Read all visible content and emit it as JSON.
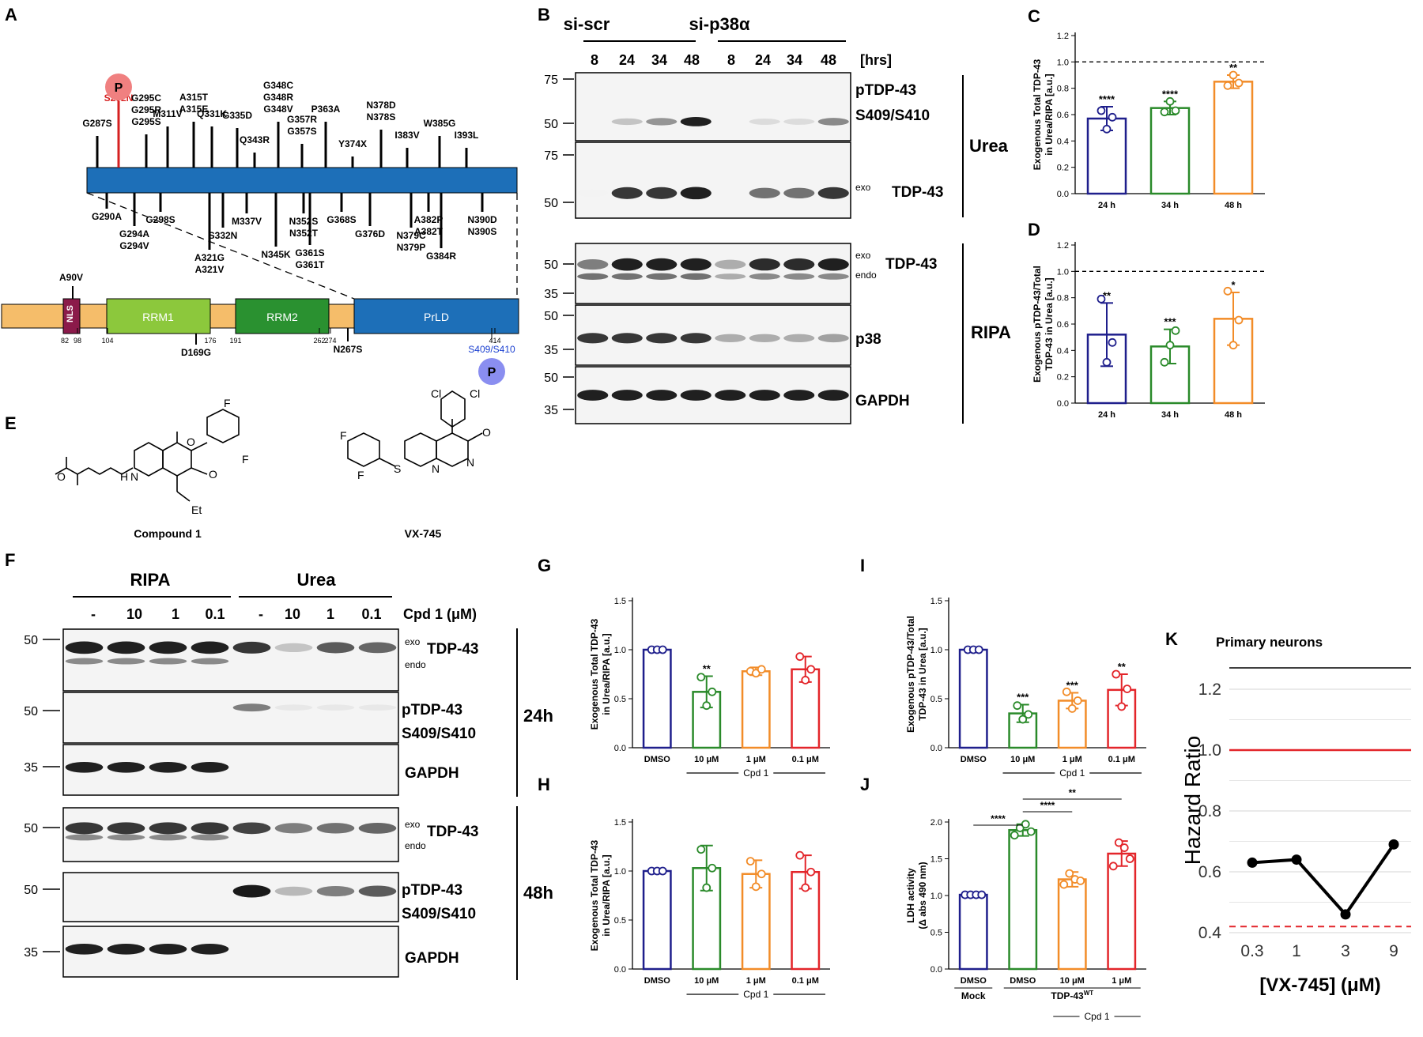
{
  "colors": {
    "navy": "#1f1f8c",
    "green": "#2a8a2a",
    "orange": "#f28c28",
    "red": "#e3252a",
    "blue_domain": "#1d6fb8",
    "rrm1": "#8cc83c",
    "rrm2": "#2a9130",
    "nls": "#8b1a4a",
    "linker": "#f5bd6a",
    "phospho_red": "#f08080",
    "phospho_blue": "#8a8ef0"
  },
  "panelA": {
    "letter": "A",
    "top_mutations": [
      "G287S",
      "S292N",
      "G295C\nG295R\nG295S",
      "M311V",
      "A315T\nA315E",
      "Q331K",
      "G335D",
      "Q343R",
      "G348C\nG348R\nG348V",
      "G357R\nG357S",
      "P363A",
      "Y374X",
      "N378D\nN378S",
      "I383V",
      "W385G",
      "I393L"
    ],
    "bottom_mutations": [
      "G290A",
      "G294A\nG294V",
      "G298S",
      "A321G\nA321V",
      "S332N",
      "M337V",
      "N345K",
      "N352S\nN352T",
      "G361S\nG361T",
      "G368S",
      "G376D",
      "N379C\nN379P",
      "A382P\nA382T",
      "G384R",
      "N390D\nN390S"
    ],
    "phospho_top": "S292N",
    "p_label": "P",
    "domains": {
      "nls": "NLS",
      "rrm1": "RRM1",
      "rrm2": "RRM2",
      "prld": "PrLD"
    },
    "positions": [
      "82",
      "98",
      "104",
      "176",
      "191",
      "262",
      "274",
      "414"
    ],
    "other_mutations": {
      "a90v": "A90V",
      "d169g": "D169G",
      "n267s": "N267S"
    },
    "phospho_site": "S409/S410"
  },
  "panelB": {
    "letter": "B",
    "group1": "si-scr",
    "group2": "si-p38α",
    "times": [
      "8",
      "24",
      "34",
      "48",
      "8",
      "24",
      "34",
      "48"
    ],
    "time_unit": "[hrs]",
    "mw_upper": [
      "75",
      "50",
      "75",
      "50"
    ],
    "mw_lower": [
      "50",
      "35",
      "50",
      "35",
      "50",
      "35"
    ],
    "labels": {
      "ptdp": "pTDP-43",
      "ptdp_site": "S409/S410",
      "exo": "exo",
      "endo": "endo",
      "tdp": "TDP-43",
      "p38": "p38",
      "gapdh": "GAPDH",
      "urea": "Urea",
      "ripa": "RIPA"
    }
  },
  "panelC": {
    "letter": "C",
    "ylabel1": "Exogenous Total TDP-43",
    "ylabel2": "in Urea/RIPA [a.u.]",
    "categories": [
      "24 h",
      "34 h",
      "48 h"
    ],
    "values": [
      0.57,
      0.65,
      0.85
    ],
    "sig": [
      "****",
      "****",
      "**"
    ]
  },
  "panelD": {
    "letter": "D",
    "ylabel1": "Exogenous pTDP-43/Total",
    "ylabel2": "TDP-43 in Urea [a.u.]",
    "categories": [
      "24 h",
      "34 h",
      "48 h"
    ],
    "values": [
      0.52,
      0.43,
      0.64
    ],
    "sig": [
      "**",
      "***",
      "*"
    ]
  },
  "panelE": {
    "letter": "E",
    "cpd1": "Compound 1",
    "vx": "VX-745"
  },
  "panelF": {
    "letter": "F",
    "group1": "RIPA",
    "group2": "Urea",
    "lanes": [
      "-",
      "10",
      "1",
      "0.1",
      "-",
      "10",
      "1",
      "0.1"
    ],
    "cpd_label": "Cpd 1 (μM)",
    "mw": [
      "50",
      "50",
      "35",
      "50",
      "50",
      "35"
    ],
    "t24": "24h",
    "t48": "48h",
    "labels": {
      "exo": "exo",
      "endo": "endo",
      "tdp": "TDP-43",
      "ptdp": "pTDP-43",
      "site": "S409/S410",
      "gapdh": "GAPDH"
    }
  },
  "panelG": {
    "letter": "G",
    "ylabel1": "Exogenous Total TDP-43",
    "ylabel2": "in Urea/RIPA [a.u.]",
    "categories": [
      "DMSO",
      "10 μM",
      "1 μM",
      "0.1 μM"
    ],
    "values": [
      1.0,
      0.57,
      0.78,
      0.8
    ],
    "sig": [
      "",
      "**",
      "",
      ""
    ],
    "group": "Cpd 1"
  },
  "panelH": {
    "letter": "H",
    "ylabel1": "Exogenous Total TDP-43",
    "ylabel2": "in Urea/RIPA [a.u.]",
    "categories": [
      "DMSO",
      "10 μM",
      "1 μM",
      "0.1 μM"
    ],
    "values": [
      1.0,
      1.03,
      0.97,
      0.99
    ],
    "group": "Cpd 1"
  },
  "panelI": {
    "letter": "I",
    "ylabel1": "Exogenous pTDP-43/Total",
    "ylabel2": "TDP-43 in Urea [a.u.]",
    "categories": [
      "DMSO",
      "10 μM",
      "1 μM",
      "0.1 μM"
    ],
    "values": [
      1.0,
      0.35,
      0.48,
      0.59
    ],
    "sig": [
      "",
      "***",
      "***",
      "**"
    ],
    "group": "Cpd 1"
  },
  "panelJ": {
    "letter": "J",
    "ylabel1": "LDH activity",
    "ylabel2": "(Δ abs 490 nm)",
    "categories": [
      "DMSO",
      "DMSO",
      "10 μM",
      "1 μM"
    ],
    "values": [
      1.01,
      1.89,
      1.22,
      1.57
    ],
    "sig": [
      "****",
      "****",
      "**"
    ],
    "mock": "Mock",
    "tdp_wt": "TDP-43",
    "tdp_wt_sup": "WT",
    "group": "Cpd 1"
  },
  "panelK": {
    "letter": "K",
    "title": "Primary neurons",
    "ylabel": "Hazard Ratio",
    "xlabel": "[VX-745] (μM)",
    "x_ticks": [
      "0.3",
      "1",
      "3",
      "9"
    ],
    "y_ticks": [
      "0.4",
      "0.6",
      "0.8",
      "1.0",
      "1.2"
    ],
    "values": [
      0.63,
      0.64,
      0.46,
      0.69
    ]
  },
  "chart_data": [
    {
      "type": "bar",
      "panel": "C",
      "categories": [
        "24 h",
        "34 h",
        "48 h"
      ],
      "values": [
        0.57,
        0.65,
        0.85
      ],
      "ylabel": "Exogenous Total TDP-43 in Urea/RIPA [a.u.]",
      "ylim": [
        0,
        1.2
      ],
      "reference_line": 1.0
    },
    {
      "type": "bar",
      "panel": "D",
      "categories": [
        "24 h",
        "34 h",
        "48 h"
      ],
      "values": [
        0.52,
        0.43,
        0.64
      ],
      "ylabel": "Exogenous pTDP-43/Total TDP-43 in Urea [a.u.]",
      "ylim": [
        0,
        1.2
      ],
      "reference_line": 1.0
    },
    {
      "type": "bar",
      "panel": "G",
      "categories": [
        "DMSO",
        "10 μM",
        "1 μM",
        "0.1 μM"
      ],
      "values": [
        1.0,
        0.57,
        0.78,
        0.8
      ],
      "ylim": [
        0,
        1.5
      ]
    },
    {
      "type": "bar",
      "panel": "H",
      "categories": [
        "DMSO",
        "10 μM",
        "1 μM",
        "0.1 μM"
      ],
      "values": [
        1.0,
        1.03,
        0.97,
        0.99
      ],
      "ylim": [
        0,
        1.5
      ]
    },
    {
      "type": "bar",
      "panel": "I",
      "categories": [
        "DMSO",
        "10 μM",
        "1 μM",
        "0.1 μM"
      ],
      "values": [
        1.0,
        0.35,
        0.48,
        0.59
      ],
      "ylim": [
        0,
        1.5
      ]
    },
    {
      "type": "bar",
      "panel": "J",
      "categories": [
        "DMSO",
        "DMSO",
        "10 μM",
        "1 μM"
      ],
      "values": [
        1.01,
        1.89,
        1.22,
        1.57
      ],
      "ylim": [
        0,
        2.0
      ]
    },
    {
      "type": "line",
      "panel": "K",
      "x": [
        "0.3",
        "1",
        "3",
        "9"
      ],
      "values": [
        0.63,
        0.64,
        0.46,
        0.69
      ],
      "ylim": [
        0.4,
        1.27
      ],
      "reference_lines": [
        1.0,
        0.42
      ]
    }
  ]
}
